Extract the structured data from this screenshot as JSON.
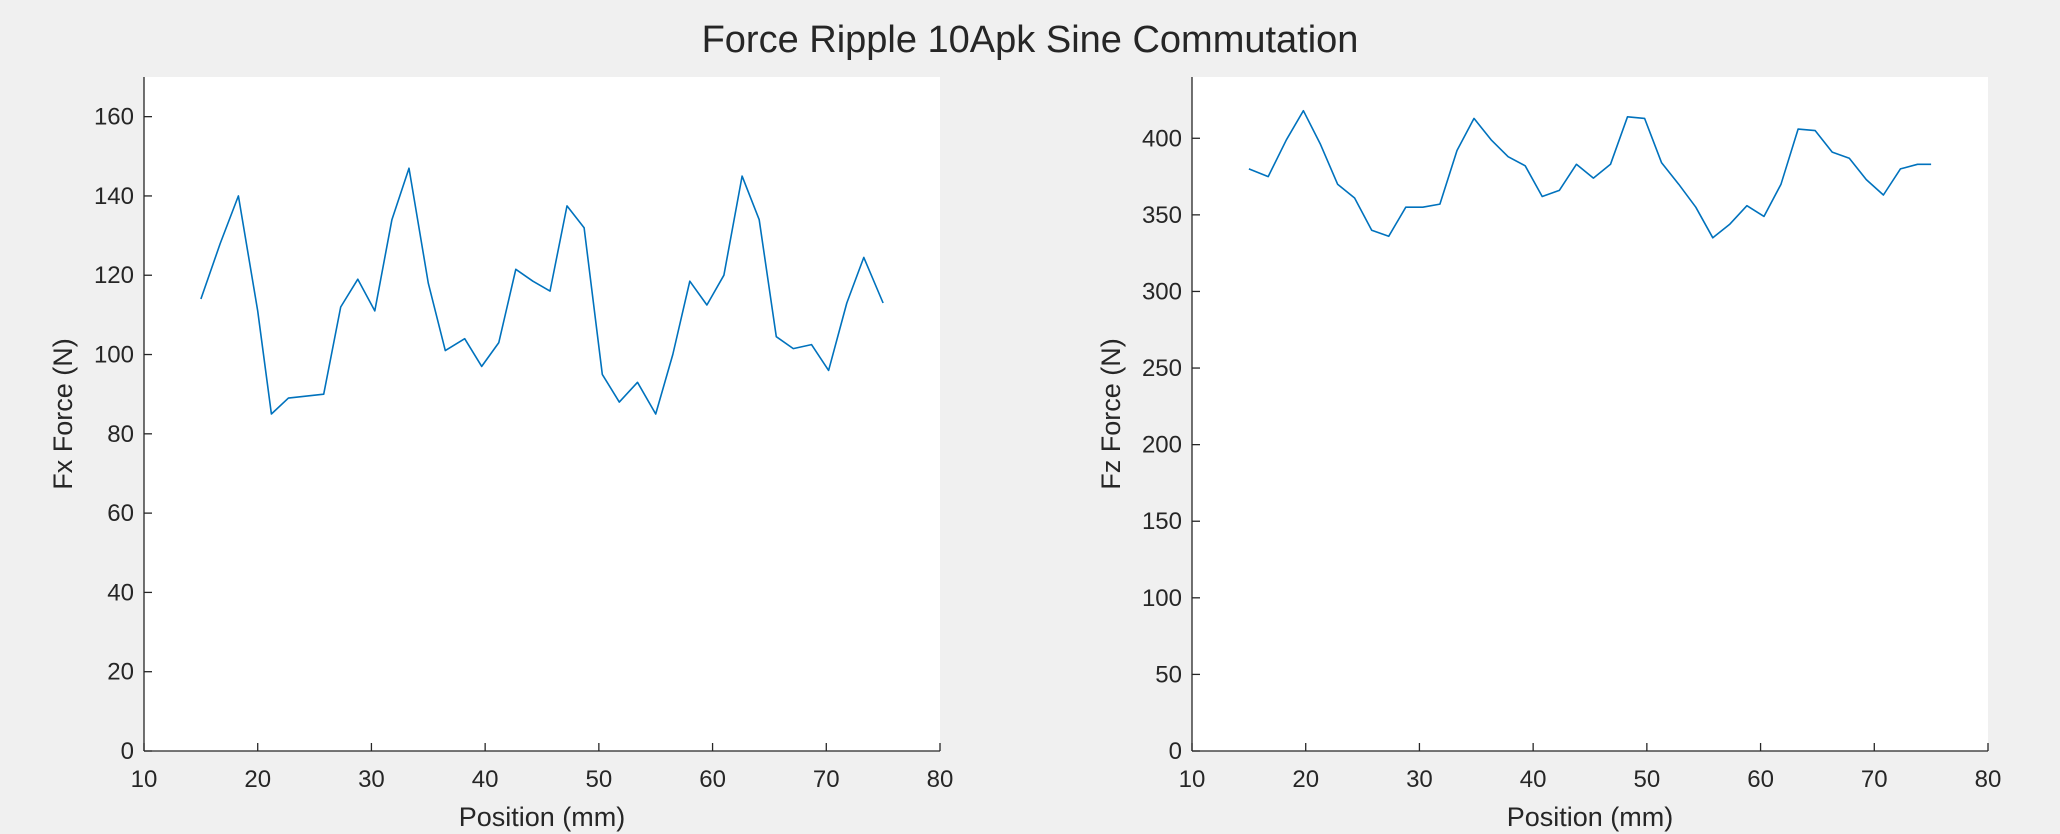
{
  "figure": {
    "title": "Force Ripple 10Apk Sine Commutation",
    "background": "#f0f0f0"
  },
  "chart_data": [
    {
      "type": "line",
      "xlabel": "Position (mm)",
      "ylabel": "Fx Force (N)",
      "xlim": [
        10,
        80
      ],
      "ylim": [
        0,
        170
      ],
      "xticks": [
        10,
        20,
        30,
        40,
        50,
        60,
        70,
        80
      ],
      "yticks": [
        0,
        20,
        40,
        60,
        80,
        100,
        120,
        140,
        160
      ],
      "grid": false,
      "line_color": "#0072bd",
      "series": [
        {
          "x": [
            15.0,
            16.7,
            18.3,
            20.0,
            21.2,
            22.7,
            24.2,
            25.8,
            27.3,
            28.8,
            30.3,
            31.8,
            33.3,
            35.0,
            36.5,
            38.2,
            39.7,
            41.2,
            42.7,
            44.2,
            45.7,
            47.2,
            48.7,
            50.3,
            51.8,
            53.4,
            55.0,
            56.5,
            58.0,
            59.5,
            61.0,
            62.6,
            64.1,
            65.6,
            67.1,
            68.7,
            70.2,
            71.8,
            73.3,
            75.0
          ],
          "y": [
            114,
            128,
            140,
            111,
            85,
            89,
            89.5,
            90,
            112,
            119,
            111,
            134,
            147,
            118,
            101,
            104,
            97,
            103,
            121.5,
            118.5,
            116,
            137.5,
            132,
            95,
            88,
            93,
            85,
            100,
            118.5,
            112.5,
            120,
            145,
            134,
            104.5,
            101.5,
            102.5,
            96,
            113,
            124.5,
            113
          ]
        }
      ]
    },
    {
      "type": "line",
      "xlabel": "Position (mm)",
      "ylabel": "Fz Force (N)",
      "xlim": [
        10,
        80
      ],
      "ylim": [
        0,
        440
      ],
      "xticks": [
        10,
        20,
        30,
        40,
        50,
        60,
        70,
        80
      ],
      "yticks": [
        0,
        50,
        100,
        150,
        200,
        250,
        300,
        350,
        400
      ],
      "grid": false,
      "line_color": "#0072bd",
      "series": [
        {
          "x": [
            15.0,
            16.7,
            18.3,
            19.8,
            21.3,
            22.8,
            24.3,
            25.8,
            27.3,
            28.8,
            30.3,
            31.8,
            33.3,
            34.8,
            36.3,
            37.8,
            39.3,
            40.8,
            42.3,
            43.8,
            45.3,
            46.8,
            48.3,
            49.8,
            51.3,
            52.8,
            54.3,
            55.8,
            57.3,
            58.8,
            60.3,
            61.8,
            63.3,
            64.8,
            66.3,
            67.8,
            69.3,
            70.8,
            72.3,
            73.8,
            75.0
          ],
          "y": [
            380,
            375,
            399,
            418,
            396,
            370,
            361,
            340,
            336,
            355,
            355,
            357,
            392,
            413,
            399,
            388,
            382,
            362,
            366,
            383,
            374,
            383,
            414,
            413,
            384,
            370,
            355,
            335,
            344,
            356,
            349,
            370,
            406,
            405,
            391,
            387,
            373,
            363,
            380,
            383,
            383
          ]
        }
      ]
    }
  ]
}
